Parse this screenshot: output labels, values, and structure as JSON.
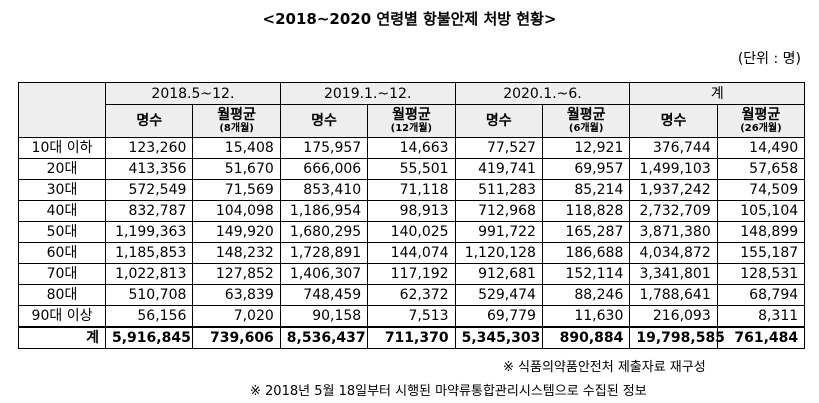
{
  "title": "<2018~2020 연령별 항불안제 처방 현황>",
  "unit": "(단위 : 명)",
  "periods": [
    "2018.5~12.",
    "2019.1.~12.",
    "2020.1.~6.",
    "계"
  ],
  "sub_headers": [
    {
      "count": "명수",
      "avg": "월평균",
      "note": "(8개월)"
    },
    {
      "count": "명수",
      "avg": "월평균",
      "note": "(12개월)"
    },
    {
      "count": "명수",
      "avg": "월평균",
      "note": "(6개월)"
    },
    {
      "count": "명수",
      "avg": "월평균",
      "note": "(26개월)"
    }
  ],
  "rows": [
    {
      "age": "10대 이하",
      "v": [
        "123,260",
        "15,408",
        "175,957",
        "14,663",
        "77,527",
        "12,921",
        "376,744",
        "14,490"
      ]
    },
    {
      "age": "20대",
      "v": [
        "413,356",
        "51,670",
        "666,006",
        "55,501",
        "419,741",
        "69,957",
        "1,499,103",
        "57,658"
      ]
    },
    {
      "age": "30대",
      "v": [
        "572,549",
        "71,569",
        "853,410",
        "71,118",
        "511,283",
        "85,214",
        "1,937,242",
        "74,509"
      ]
    },
    {
      "age": "40대",
      "v": [
        "832,787",
        "104,098",
        "1,186,954",
        "98,913",
        "712,968",
        "118,828",
        "2,732,709",
        "105,104"
      ]
    },
    {
      "age": "50대",
      "v": [
        "1,199,363",
        "149,920",
        "1,680,295",
        "140,025",
        "991,722",
        "165,287",
        "3,871,380",
        "148,899"
      ]
    },
    {
      "age": "60대",
      "v": [
        "1,185,853",
        "148,232",
        "1,728,891",
        "144,074",
        "1,120,128",
        "186,688",
        "4,034,872",
        "155,187"
      ]
    },
    {
      "age": "70대",
      "v": [
        "1,022,813",
        "127,852",
        "1,406,307",
        "117,192",
        "912,681",
        "152,114",
        "3,341,801",
        "128,531"
      ]
    },
    {
      "age": "80대",
      "v": [
        "510,708",
        "63,839",
        "748,459",
        "62,372",
        "529,474",
        "88,246",
        "1,788,641",
        "68,794"
      ]
    },
    {
      "age": "90대 이상",
      "v": [
        "56,156",
        "7,020",
        "90,158",
        "7,513",
        "69,779",
        "11,630",
        "216,093",
        "8,311"
      ]
    }
  ],
  "total": {
    "label": "계",
    "v": [
      "5,916,845",
      "739,606",
      "8,536,437",
      "711,370",
      "5,345,303",
      "890,884",
      "19,798,585",
      "761,484"
    ]
  },
  "footnotes": [
    "※ 식품의약품안전처 제출자료 재구성",
    "※ 2018년 5월 18일부터 시행된 마약류통합관리시스템으로 수집된 정보"
  ]
}
